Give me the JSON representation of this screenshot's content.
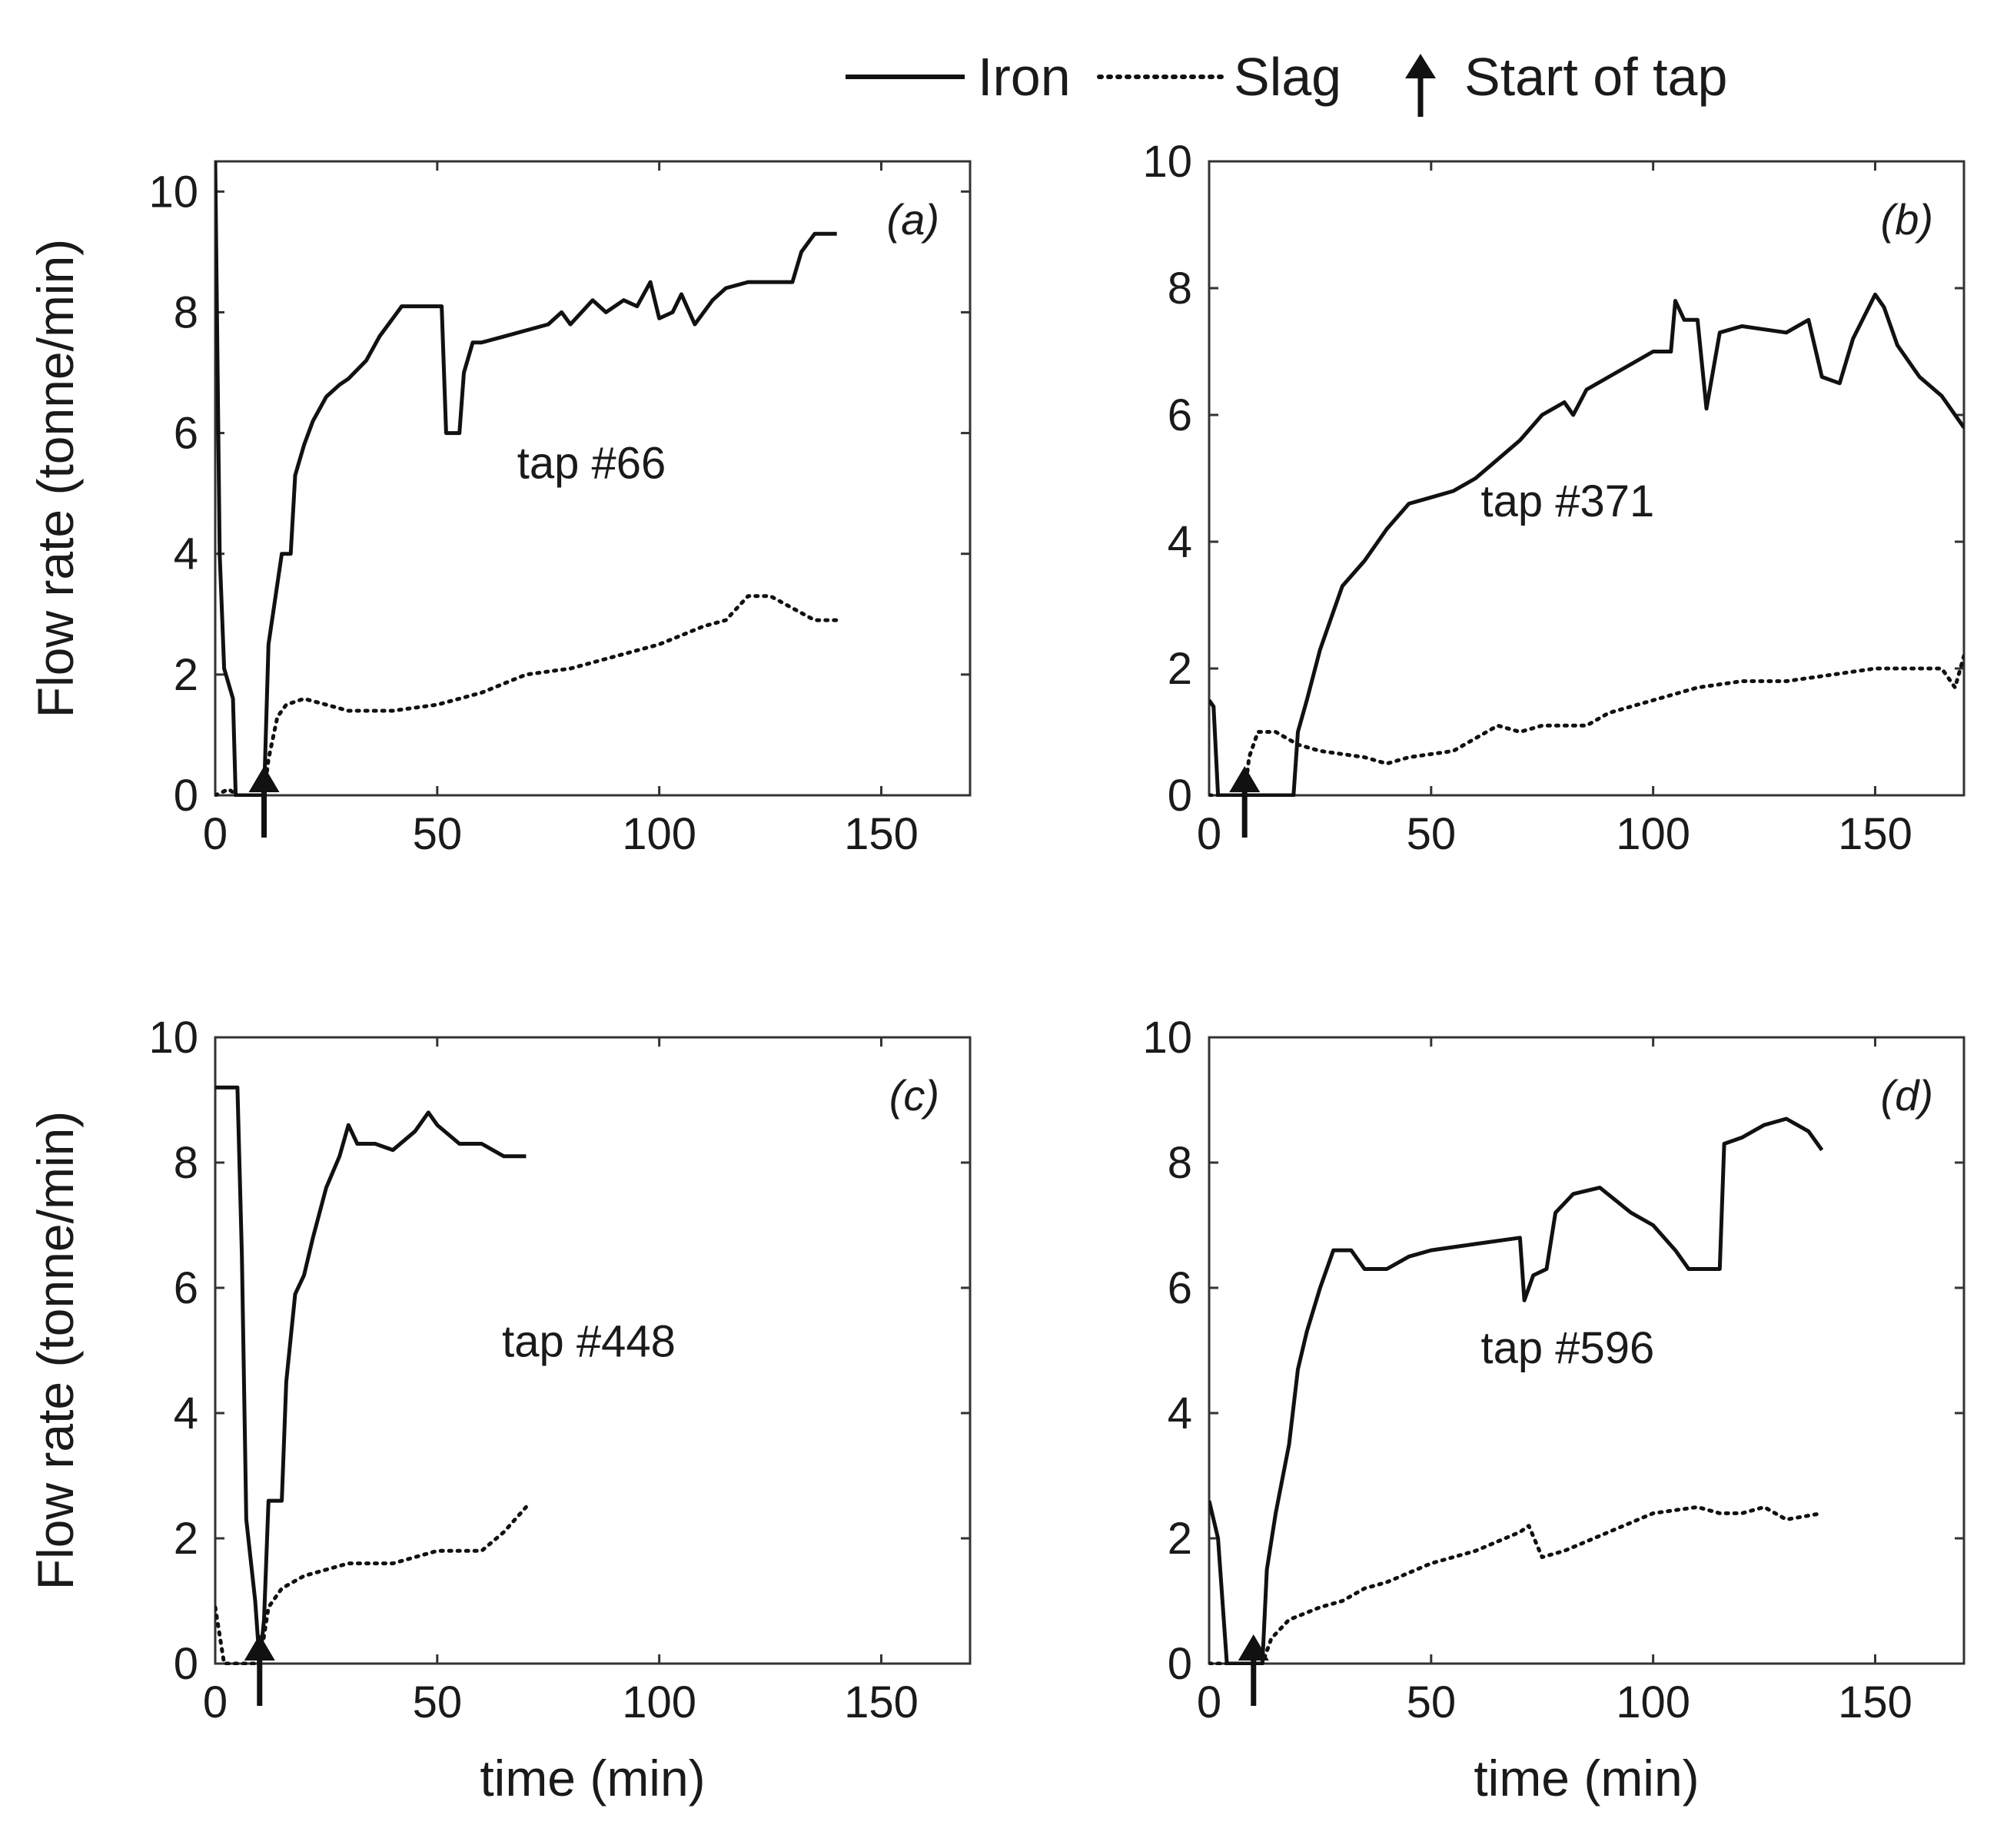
{
  "legend": {
    "iron_label": "Iron",
    "slag_label": "Slag",
    "tap_start_label": "Start of tap"
  },
  "colors": {
    "line": "#111111",
    "axis": "#333333",
    "background": "#ffffff"
  },
  "chart_data": [
    {
      "type": "line",
      "panel": "(a)",
      "tap": "tap #66",
      "xlabel": "",
      "ylabel": "Flow rate (tonne/min)",
      "xlim": [
        0,
        170
      ],
      "ylim": [
        0,
        10.5
      ],
      "xticks": [
        0,
        50,
        100,
        150
      ],
      "yticks": [
        0,
        2,
        4,
        6,
        8,
        10
      ],
      "tap_start": 11,
      "series": [
        {
          "name": "Iron",
          "style": "solid",
          "points": [
            [
              0,
              10.5
            ],
            [
              1,
              4.0
            ],
            [
              2,
              2.1
            ],
            [
              4,
              1.6
            ],
            [
              4.6,
              0
            ],
            [
              11,
              0
            ],
            [
              12,
              2.5
            ],
            [
              15,
              4.0
            ],
            [
              17,
              4.0
            ],
            [
              18,
              5.3
            ],
            [
              20,
              5.8
            ],
            [
              22,
              6.2
            ],
            [
              25,
              6.6
            ],
            [
              28,
              6.8
            ],
            [
              30,
              6.9
            ],
            [
              34,
              7.2
            ],
            [
              37,
              7.6
            ],
            [
              40,
              7.9
            ],
            [
              42,
              8.1
            ],
            [
              51,
              8.1
            ],
            [
              52,
              6.0
            ],
            [
              55,
              6.0
            ],
            [
              56,
              7.0
            ],
            [
              58,
              7.5
            ],
            [
              60,
              7.5
            ],
            [
              65,
              7.6
            ],
            [
              70,
              7.7
            ],
            [
              75,
              7.8
            ],
            [
              78,
              8.0
            ],
            [
              80,
              7.8
            ],
            [
              85,
              8.2
            ],
            [
              88,
              8.0
            ],
            [
              92,
              8.2
            ],
            [
              95,
              8.1
            ],
            [
              98,
              8.5
            ],
            [
              100,
              7.9
            ],
            [
              103,
              8.0
            ],
            [
              105,
              8.3
            ],
            [
              108,
              7.8
            ],
            [
              112,
              8.2
            ],
            [
              115,
              8.4
            ],
            [
              120,
              8.5
            ],
            [
              125,
              8.5
            ],
            [
              130,
              8.5
            ],
            [
              132,
              9.0
            ],
            [
              135,
              9.3
            ],
            [
              140,
              9.3
            ]
          ]
        },
        {
          "name": "Slag",
          "style": "dotted",
          "points": [
            [
              0,
              0
            ],
            [
              3,
              0.1
            ],
            [
              5,
              0
            ],
            [
              11,
              0
            ],
            [
              12,
              0.6
            ],
            [
              14,
              1.3
            ],
            [
              16,
              1.5
            ],
            [
              20,
              1.6
            ],
            [
              25,
              1.5
            ],
            [
              30,
              1.4
            ],
            [
              40,
              1.4
            ],
            [
              50,
              1.5
            ],
            [
              60,
              1.7
            ],
            [
              70,
              2.0
            ],
            [
              80,
              2.1
            ],
            [
              90,
              2.3
            ],
            [
              100,
              2.5
            ],
            [
              110,
              2.8
            ],
            [
              115,
              2.9
            ],
            [
              120,
              3.3
            ],
            [
              125,
              3.3
            ],
            [
              130,
              3.1
            ],
            [
              135,
              2.9
            ],
            [
              140,
              2.9
            ]
          ]
        }
      ]
    },
    {
      "type": "line",
      "panel": "(b)",
      "tap": "tap #371",
      "xlabel": "",
      "ylabel": "",
      "xlim": [
        0,
        170
      ],
      "ylim": [
        0,
        10
      ],
      "xticks": [
        0,
        50,
        100,
        150
      ],
      "yticks": [
        0,
        2,
        4,
        6,
        8,
        10
      ],
      "tap_start": 8,
      "series": [
        {
          "name": "Iron",
          "style": "solid",
          "points": [
            [
              0,
              1.5
            ],
            [
              1,
              1.4
            ],
            [
              2,
              0
            ],
            [
              19,
              0
            ],
            [
              20,
              1.0
            ],
            [
              22,
              1.5
            ],
            [
              25,
              2.3
            ],
            [
              28,
              2.9
            ],
            [
              30,
              3.3
            ],
            [
              35,
              3.7
            ],
            [
              40,
              4.2
            ],
            [
              45,
              4.6
            ],
            [
              50,
              4.7
            ],
            [
              55,
              4.8
            ],
            [
              60,
              5.0
            ],
            [
              65,
              5.3
            ],
            [
              70,
              5.6
            ],
            [
              75,
              6.0
            ],
            [
              80,
              6.2
            ],
            [
              82,
              6.0
            ],
            [
              85,
              6.4
            ],
            [
              90,
              6.6
            ],
            [
              95,
              6.8
            ],
            [
              100,
              7.0
            ],
            [
              104,
              7.0
            ],
            [
              105,
              7.8
            ],
            [
              107,
              7.5
            ],
            [
              110,
              7.5
            ],
            [
              112,
              6.1
            ],
            [
              115,
              7.3
            ],
            [
              120,
              7.4
            ],
            [
              130,
              7.3
            ],
            [
              135,
              7.5
            ],
            [
              138,
              6.6
            ],
            [
              142,
              6.5
            ],
            [
              145,
              7.2
            ],
            [
              150,
              7.9
            ],
            [
              152,
              7.7
            ],
            [
              155,
              7.1
            ],
            [
              160,
              6.6
            ],
            [
              165,
              6.3
            ],
            [
              170,
              5.8
            ]
          ]
        },
        {
          "name": "Slag",
          "style": "dotted",
          "points": [
            [
              0,
              0
            ],
            [
              2,
              0
            ],
            [
              8,
              0
            ],
            [
              9,
              0.6
            ],
            [
              11,
              1.0
            ],
            [
              15,
              1.0
            ],
            [
              20,
              0.8
            ],
            [
              25,
              0.7
            ],
            [
              35,
              0.6
            ],
            [
              40,
              0.5
            ],
            [
              45,
              0.6
            ],
            [
              55,
              0.7
            ],
            [
              60,
              0.9
            ],
            [
              65,
              1.1
            ],
            [
              70,
              1.0
            ],
            [
              75,
              1.1
            ],
            [
              85,
              1.1
            ],
            [
              90,
              1.3
            ],
            [
              100,
              1.5
            ],
            [
              110,
              1.7
            ],
            [
              120,
              1.8
            ],
            [
              130,
              1.8
            ],
            [
              140,
              1.9
            ],
            [
              150,
              2.0
            ],
            [
              165,
              2.0
            ],
            [
              168,
              1.7
            ],
            [
              170,
              2.2
            ]
          ]
        }
      ]
    },
    {
      "type": "line",
      "panel": "(c)",
      "tap": "tap #448",
      "xlabel": "time (min)",
      "ylabel": "Flow rate (tonne/min)",
      "xlim": [
        0,
        170
      ],
      "ylim": [
        0,
        10
      ],
      "xticks": [
        0,
        50,
        100,
        150
      ],
      "yticks": [
        0,
        2,
        4,
        6,
        8,
        10
      ],
      "tap_start": 10,
      "series": [
        {
          "name": "Iron",
          "style": "solid",
          "points": [
            [
              0,
              9.2
            ],
            [
              5,
              9.2
            ],
            [
              6,
              6.5
            ],
            [
              7,
              2.3
            ],
            [
              9,
              1.0
            ],
            [
              10,
              0
            ],
            [
              11,
              0.7
            ],
            [
              12,
              2.6
            ],
            [
              15,
              2.6
            ],
            [
              16,
              4.5
            ],
            [
              18,
              5.9
            ],
            [
              20,
              6.2
            ],
            [
              22,
              6.8
            ],
            [
              25,
              7.6
            ],
            [
              28,
              8.1
            ],
            [
              30,
              8.6
            ],
            [
              32,
              8.3
            ],
            [
              36,
              8.3
            ],
            [
              40,
              8.2
            ],
            [
              45,
              8.5
            ],
            [
              48,
              8.8
            ],
            [
              50,
              8.6
            ],
            [
              55,
              8.3
            ],
            [
              60,
              8.3
            ],
            [
              65,
              8.1
            ],
            [
              70,
              8.1
            ]
          ]
        },
        {
          "name": "Slag",
          "style": "dotted",
          "points": [
            [
              0,
              0.9
            ],
            [
              2,
              0
            ],
            [
              10,
              0
            ],
            [
              12,
              0.9
            ],
            [
              15,
              1.2
            ],
            [
              20,
              1.4
            ],
            [
              30,
              1.6
            ],
            [
              40,
              1.6
            ],
            [
              50,
              1.8
            ],
            [
              60,
              1.8
            ],
            [
              65,
              2.1
            ],
            [
              70,
              2.5
            ]
          ]
        }
      ]
    },
    {
      "type": "line",
      "panel": "(d)",
      "tap": "tap #596",
      "xlabel": "time (min)",
      "ylabel": "",
      "xlim": [
        0,
        170
      ],
      "ylim": [
        0,
        10
      ],
      "xticks": [
        0,
        50,
        100,
        150
      ],
      "yticks": [
        0,
        2,
        4,
        6,
        8,
        10
      ],
      "tap_start": 10,
      "series": [
        {
          "name": "Iron",
          "style": "solid",
          "points": [
            [
              0,
              2.6
            ],
            [
              2,
              2.0
            ],
            [
              4,
              0
            ],
            [
              12,
              0
            ],
            [
              13,
              1.5
            ],
            [
              15,
              2.4
            ],
            [
              18,
              3.5
            ],
            [
              20,
              4.7
            ],
            [
              22,
              5.3
            ],
            [
              25,
              6.0
            ],
            [
              28,
              6.6
            ],
            [
              32,
              6.6
            ],
            [
              35,
              6.3
            ],
            [
              40,
              6.3
            ],
            [
              45,
              6.5
            ],
            [
              50,
              6.6
            ],
            [
              60,
              6.7
            ],
            [
              70,
              6.8
            ],
            [
              71,
              5.8
            ],
            [
              73,
              6.2
            ],
            [
              76,
              6.3
            ],
            [
              78,
              7.2
            ],
            [
              82,
              7.5
            ],
            [
              88,
              7.6
            ],
            [
              95,
              7.2
            ],
            [
              100,
              7.0
            ],
            [
              105,
              6.6
            ],
            [
              108,
              6.3
            ],
            [
              115,
              6.3
            ],
            [
              116,
              8.3
            ],
            [
              120,
              8.4
            ],
            [
              125,
              8.6
            ],
            [
              130,
              8.7
            ],
            [
              135,
              8.5
            ],
            [
              138,
              8.2
            ]
          ]
        },
        {
          "name": "Slag",
          "style": "dotted",
          "points": [
            [
              0,
              0
            ],
            [
              12,
              0
            ],
            [
              14,
              0.4
            ],
            [
              18,
              0.7
            ],
            [
              25,
              0.9
            ],
            [
              30,
              1.0
            ],
            [
              35,
              1.2
            ],
            [
              40,
              1.3
            ],
            [
              50,
              1.6
            ],
            [
              60,
              1.8
            ],
            [
              70,
              2.1
            ],
            [
              72,
              2.2
            ],
            [
              75,
              1.7
            ],
            [
              80,
              1.8
            ],
            [
              90,
              2.1
            ],
            [
              100,
              2.4
            ],
            [
              110,
              2.5
            ],
            [
              115,
              2.4
            ],
            [
              120,
              2.4
            ],
            [
              125,
              2.5
            ],
            [
              130,
              2.3
            ],
            [
              138,
              2.4
            ]
          ]
        }
      ]
    }
  ]
}
